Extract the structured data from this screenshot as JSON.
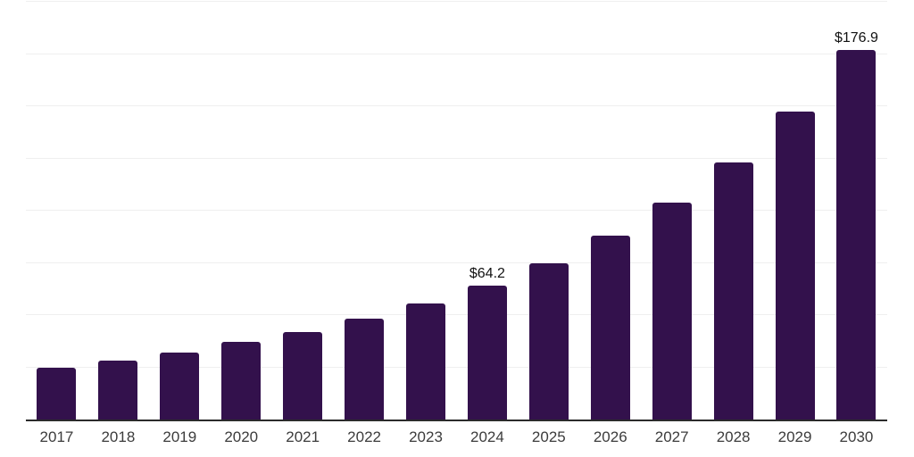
{
  "colors": {
    "background": "#ffffff",
    "bar": "#33114C",
    "grid": "#efefef",
    "axis": "#2b2b2b",
    "tick_label": "#3c3c3c",
    "value_label": "#111111"
  },
  "chart_data": {
    "type": "bar",
    "title": "",
    "xlabel": "",
    "ylabel": "",
    "categories": [
      "2017",
      "2018",
      "2019",
      "2020",
      "2021",
      "2022",
      "2023",
      "2024",
      "2025",
      "2026",
      "2027",
      "2028",
      "2029",
      "2030"
    ],
    "values": [
      25.0,
      28.4,
      32.2,
      37.0,
      42.0,
      48.2,
      55.4,
      64.2,
      75.0,
      88.1,
      103.8,
      122.9,
      147.5,
      176.9
    ],
    "value_labels": [
      "",
      "",
      "",
      "",
      "",
      "",
      "",
      "$64.2",
      "",
      "",
      "",
      "",
      "",
      "$176.9"
    ],
    "ylim": [
      0,
      200
    ],
    "grid_interval": 25,
    "grid": "horizontal-only",
    "y_tick_labels_visible": false,
    "legend": "none"
  }
}
